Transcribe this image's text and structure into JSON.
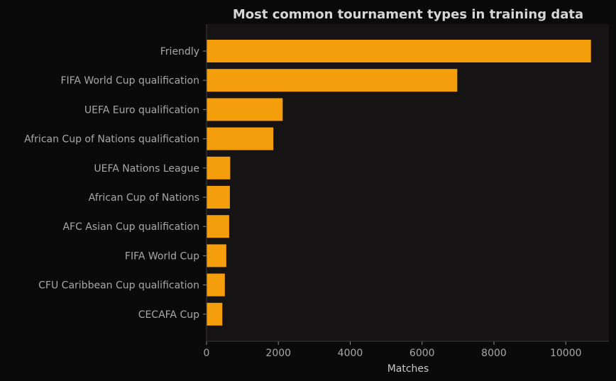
{
  "chart_data": {
    "type": "bar",
    "orientation": "horizontal",
    "title": "Most common tournament types in training data",
    "xlabel": "Matches",
    "ylabel": "",
    "categories": [
      "Friendly",
      "FIFA World Cup qualification",
      "UEFA Euro qualification",
      "African Cup of Nations qualification",
      "UEFA Nations League",
      "African Cup of Nations",
      "AFC Asian Cup qualification",
      "FIFA World Cup",
      "CFU Caribbean Cup qualification",
      "CECAFA Cup"
    ],
    "values": [
      10700,
      6980,
      2120,
      1860,
      660,
      650,
      630,
      550,
      510,
      440
    ],
    "xlim": [
      0,
      11200
    ],
    "xticks": [
      0,
      2000,
      4000,
      6000,
      8000,
      10000
    ],
    "xtick_labels": [
      "0",
      "2000",
      "4000",
      "6000",
      "8000",
      "10000"
    ],
    "grid": false,
    "legend": "none"
  },
  "colors": {
    "page_background": "#0a0a0a",
    "plot_background": "#161314",
    "bar": "#f59e0b",
    "axis_line": "#3a3a3a",
    "title_text": "#d6d6d6",
    "tick_text": "#a8a8a8"
  }
}
